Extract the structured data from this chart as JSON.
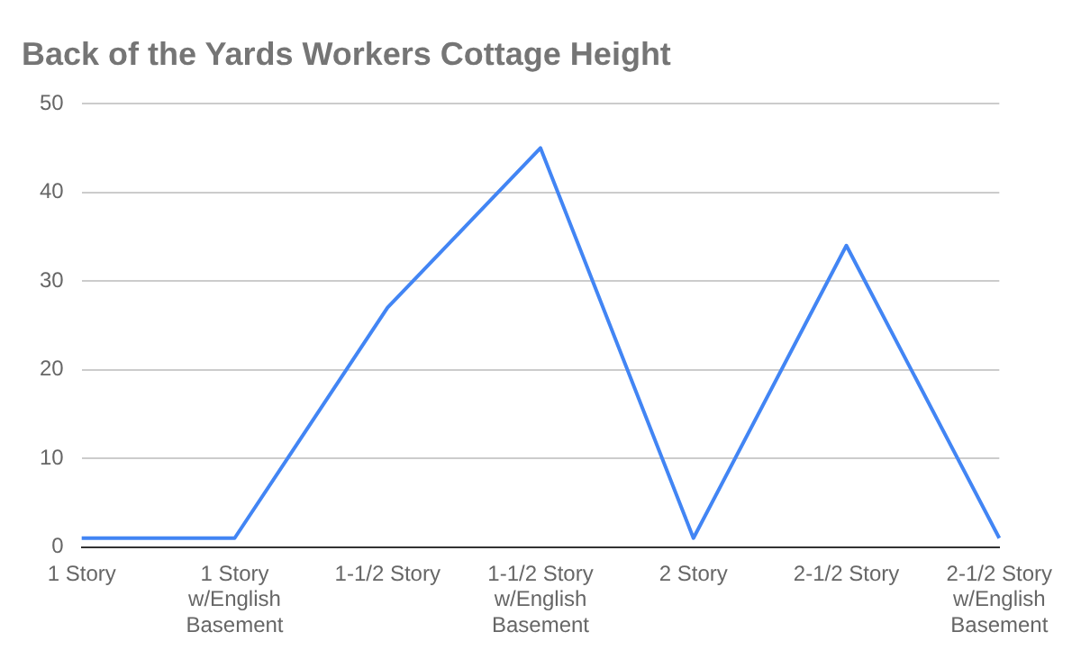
{
  "chart_data": {
    "type": "line",
    "title": "Back of the Yards Workers Cottage Height",
    "categories": [
      "1 Story",
      "1 Story w/English Basement",
      "1-1/2 Story",
      "1-1/2 Story w/English Basement",
      "2 Story",
      "2-1/2 Story",
      "2-1/2 Story w/English Basement"
    ],
    "series": [
      {
        "color": "#4285f4",
        "values": [
          1,
          1,
          27,
          45,
          1,
          34,
          1
        ]
      }
    ],
    "ylim": [
      0,
      50
    ],
    "yticks": [
      0,
      10,
      20,
      30,
      40,
      50
    ],
    "grid": "y",
    "legend": false,
    "marker": "none",
    "line_style": "solid"
  }
}
